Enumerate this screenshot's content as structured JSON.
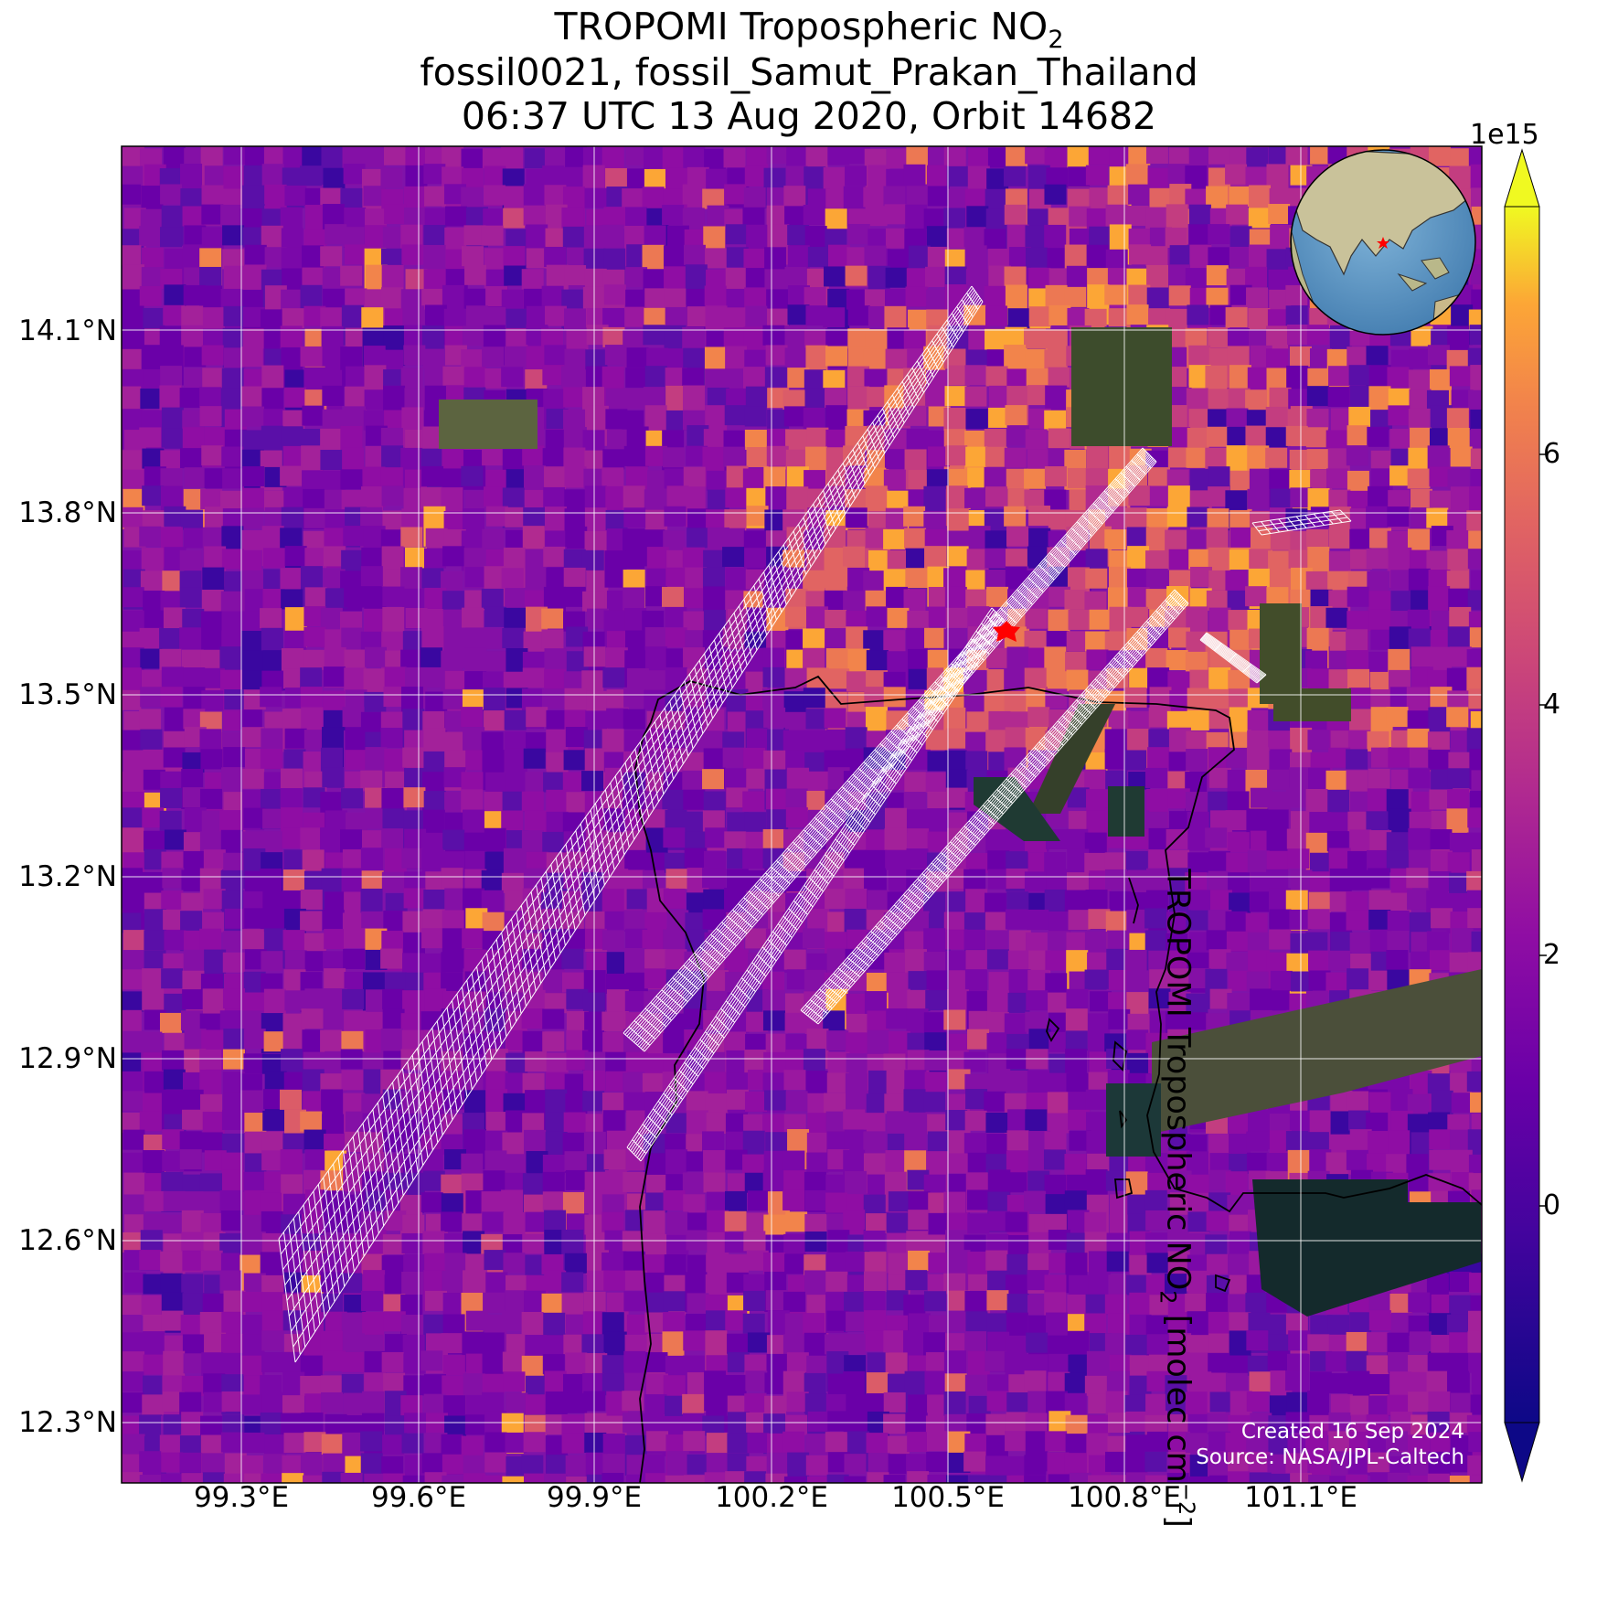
{
  "title": {
    "line1_prefix": "TROPOMI Tropospheric NO",
    "line1_sub": "2",
    "line2": "fossil0021, fossil_Samut_Prakan_Thailand",
    "line3": "06:37 UTC 13 Aug 2020, Orbit 14682"
  },
  "map": {
    "lon_ticks": [
      "99.3°E",
      "99.6°E",
      "99.9°E",
      "100.2°E",
      "100.5°E",
      "100.8°E",
      "101.1°E"
    ],
    "lat_ticks": [
      "14.1°N",
      "13.8°N",
      "13.5°N",
      "13.2°N",
      "12.9°N",
      "12.6°N",
      "12.3°N"
    ],
    "target_marker": "red-star",
    "target_color": "#ff0000",
    "gridline_color": "#ffffff",
    "sounding_outline_color": "#ffffff",
    "inset": "globe-locator-asia"
  },
  "colorbar": {
    "multiplier": "1e15",
    "ticks": [
      "6",
      "4",
      "2",
      "0"
    ],
    "label_prefix": "TROPOMI Tropospheric NO",
    "label_sub": "2",
    "label_suffix": " [molec cm",
    "label_sup": "−2",
    "label_end": "]",
    "colormap": "plasma"
  },
  "credits": {
    "created": "Created 16 Sep 2024",
    "source": "Source: NASA/JPL-Caltech"
  }
}
